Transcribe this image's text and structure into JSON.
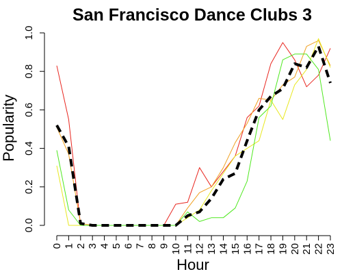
{
  "chart_data": {
    "type": "line",
    "title": "San Francisco Dance Clubs 3",
    "xlabel": "Hour",
    "ylabel": "Popularity",
    "ylim": [
      0,
      1
    ],
    "yticks": [
      "0.0",
      "0.2",
      "0.4",
      "0.6",
      "0.8",
      "1.0"
    ],
    "categories": [
      "0",
      "1",
      "2",
      "3",
      "4",
      "5",
      "6",
      "7",
      "8",
      "9",
      "10",
      "11",
      "12",
      "13",
      "14",
      "15",
      "16",
      "17",
      "18",
      "19",
      "20",
      "21",
      "22",
      "23"
    ],
    "grid": false,
    "series": [
      {
        "color": "#e8251e",
        "style": "solid",
        "values": [
          0.83,
          0.55,
          0,
          0,
          0,
          0,
          0,
          0,
          0,
          0,
          0.11,
          0.12,
          0.3,
          0.2,
          0.28,
          0.36,
          0.56,
          0.62,
          0.84,
          0.95,
          0.86,
          0.72,
          0.78,
          0.92
        ]
      },
      {
        "color": "#f0a020",
        "style": "solid",
        "values": [
          0.51,
          0.37,
          0.01,
          0,
          0,
          0,
          0,
          0,
          0,
          0,
          0,
          0.09,
          0.17,
          0.2,
          0.3,
          0.43,
          0.53,
          0.66,
          0.65,
          0.73,
          0.77,
          0.93,
          0.96,
          0.83
        ]
      },
      {
        "color": "#e8e820",
        "style": "solid",
        "values": [
          0.31,
          0,
          0,
          0,
          0,
          0,
          0,
          0,
          0,
          0,
          0,
          0.04,
          0.08,
          0.18,
          0.27,
          0.36,
          0.4,
          0.44,
          0.65,
          0.55,
          0.73,
          0.81,
          0.97,
          0.82
        ]
      },
      {
        "color": "#4ee81e",
        "style": "solid",
        "values": [
          0.39,
          0.08,
          0,
          0,
          0,
          0,
          0,
          0,
          0,
          0,
          0,
          0.07,
          0.02,
          0.04,
          0.04,
          0.09,
          0.23,
          0.56,
          0.62,
          0.86,
          0.89,
          0.89,
          0.81,
          0.44
        ]
      },
      {
        "color": "#000000",
        "style": "dashed",
        "values": [
          0.52,
          0.41,
          0.01,
          0,
          0,
          0,
          0,
          0,
          0,
          0,
          0,
          0.05,
          0.07,
          0.14,
          0.24,
          0.27,
          0.44,
          0.6,
          0.67,
          0.71,
          0.84,
          0.82,
          0.93,
          0.74
        ]
      }
    ]
  }
}
